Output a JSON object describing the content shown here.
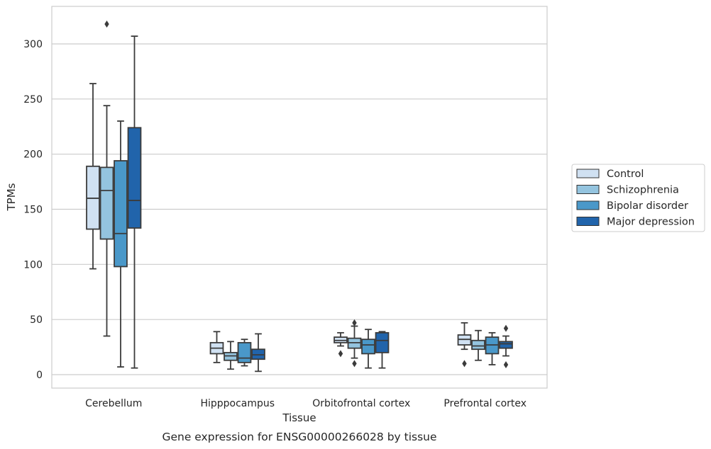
{
  "chart_data": {
    "type": "box",
    "title": "Gene expression for ENSG00000266028 by tissue",
    "xlabel": "Tissue",
    "ylabel": "TPMs",
    "ylim": [
      -12,
      333
    ],
    "yticks": [
      0,
      50,
      100,
      150,
      200,
      250,
      300
    ],
    "grid": "horizontal",
    "legend_position": "right",
    "categories": [
      "Cerebellum",
      "Hipppocampus",
      "Orbitofrontal cortex",
      "Prefrontal cortex"
    ],
    "series": [
      {
        "name": "Control",
        "color": "#d0e1f2",
        "boxes": [
          {
            "whislo": 96,
            "q1": 132,
            "med": 160,
            "q3": 189,
            "whishi": 264,
            "fliers": []
          },
          {
            "whislo": 11,
            "q1": 19,
            "med": 24,
            "q3": 29,
            "whishi": 39,
            "fliers": []
          },
          {
            "whislo": 26,
            "q1": 29,
            "med": 31,
            "q3": 34,
            "whishi": 38,
            "fliers": [
              19
            ]
          },
          {
            "whislo": 23,
            "q1": 27,
            "med": 32,
            "q3": 36,
            "whishi": 47,
            "fliers": [
              10
            ]
          }
        ]
      },
      {
        "name": "Schizophrenia",
        "color": "#94c4df",
        "boxes": [
          {
            "whislo": 35,
            "q1": 123,
            "med": 167,
            "q3": 188,
            "whishi": 244,
            "fliers": [
              318
            ]
          },
          {
            "whislo": 5,
            "q1": 13,
            "med": 17,
            "q3": 20,
            "whishi": 30,
            "fliers": []
          },
          {
            "whislo": 15,
            "q1": 24,
            "med": 29,
            "q3": 33,
            "whishi": 44,
            "fliers": [
              47,
              10
            ]
          },
          {
            "whislo": 13,
            "q1": 23,
            "med": 26,
            "q3": 31,
            "whishi": 40,
            "fliers": []
          }
        ]
      },
      {
        "name": "Bipolar disorder",
        "color": "#4a98c9",
        "boxes": [
          {
            "whislo": 7,
            "q1": 98,
            "med": 128,
            "q3": 194,
            "whishi": 230,
            "fliers": []
          },
          {
            "whislo": 8,
            "q1": 11,
            "med": 15,
            "q3": 29,
            "whishi": 32,
            "fliers": []
          },
          {
            "whislo": 6,
            "q1": 19,
            "med": 27,
            "q3": 32,
            "whishi": 41,
            "fliers": []
          },
          {
            "whislo": 9,
            "q1": 19,
            "med": 27,
            "q3": 34,
            "whishi": 38,
            "fliers": []
          }
        ]
      },
      {
        "name": "Major depression",
        "color": "#2164ab",
        "boxes": [
          {
            "whislo": 6,
            "q1": 133,
            "med": 158,
            "q3": 224,
            "whishi": 307,
            "fliers": []
          },
          {
            "whislo": 3,
            "q1": 14,
            "med": 18,
            "q3": 23,
            "whishi": 37,
            "fliers": []
          },
          {
            "whislo": 6,
            "q1": 20,
            "med": 31,
            "q3": 38,
            "whishi": 39,
            "fliers": []
          },
          {
            "whislo": 17,
            "q1": 24,
            "med": 28,
            "q3": 30,
            "whishi": 35,
            "fliers": [
              42,
              9
            ]
          }
        ]
      }
    ]
  }
}
